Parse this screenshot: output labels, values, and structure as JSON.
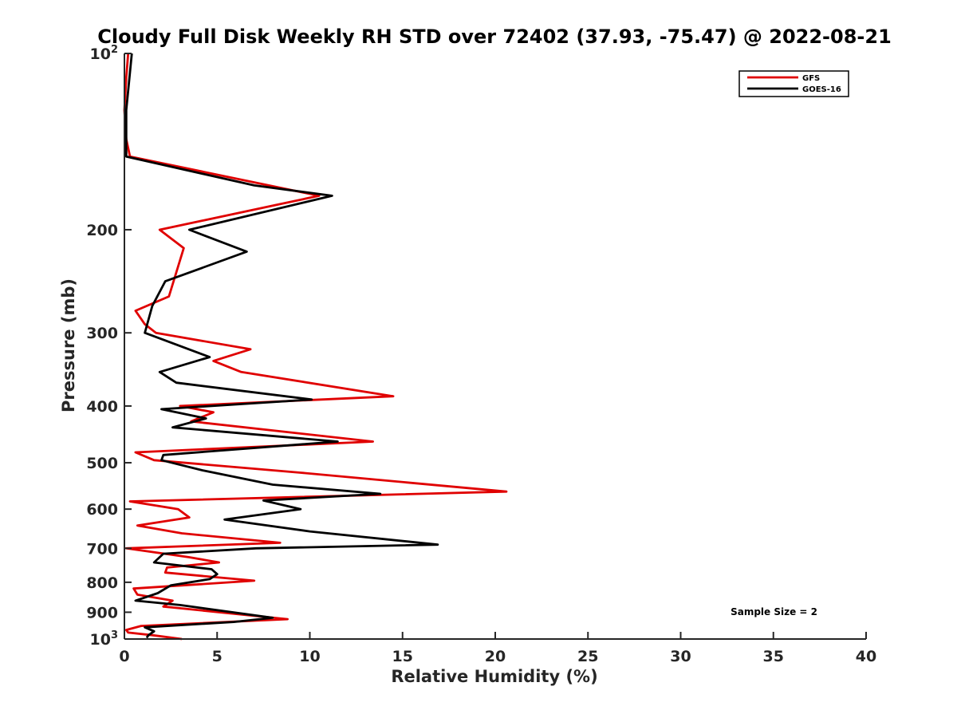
{
  "chart_data": {
    "type": "line",
    "title": "Cloudy Full Disk Weekly RH STD over 72402 (37.93, -75.47) @ 2022-08-21",
    "xlabel": "Relative Humidity (%)",
    "ylabel": "Pressure (mb)",
    "xlim": [
      0,
      40
    ],
    "ylim": [
      100,
      1000
    ],
    "y_scale": "log",
    "y_reversed": true,
    "grid": false,
    "legend_position": "top-right",
    "annotation": "Sample Size = 2",
    "x_ticks": [
      "0",
      "5",
      "10",
      "15",
      "20",
      "25",
      "30",
      "35",
      "40"
    ],
    "y_ticks": [
      {
        "value": 100,
        "base": "10",
        "exp": "2"
      },
      {
        "value": 200,
        "label": "200"
      },
      {
        "value": 300,
        "label": "300"
      },
      {
        "value": 400,
        "label": "400"
      },
      {
        "value": 500,
        "label": "500"
      },
      {
        "value": 600,
        "label": "600"
      },
      {
        "value": 700,
        "label": "700"
      },
      {
        "value": 800,
        "label": "800"
      },
      {
        "value": 900,
        "label": "900"
      },
      {
        "value": 1000,
        "base": "10",
        "exp": "3"
      }
    ],
    "series": [
      {
        "name": "GFS",
        "color": "#e00000",
        "points": [
          [
            0.2,
            100
          ],
          [
            0.1,
            110
          ],
          [
            0.0,
            125
          ],
          [
            0.1,
            140
          ],
          [
            0.3,
            150
          ],
          [
            10.5,
            175
          ],
          [
            1.9,
            200
          ],
          [
            3.2,
            215
          ],
          [
            2.4,
            260
          ],
          [
            0.6,
            275
          ],
          [
            1.1,
            290
          ],
          [
            1.7,
            300
          ],
          [
            6.8,
            320
          ],
          [
            4.8,
            335
          ],
          [
            6.3,
            350
          ],
          [
            14.5,
            385
          ],
          [
            3.0,
            400
          ],
          [
            4.8,
            410
          ],
          [
            3.6,
            425
          ],
          [
            13.4,
            460
          ],
          [
            0.6,
            480
          ],
          [
            1.6,
            495
          ],
          [
            9.5,
            520
          ],
          [
            20.6,
            560
          ],
          [
            0.3,
            582
          ],
          [
            2.9,
            600
          ],
          [
            3.5,
            620
          ],
          [
            0.7,
            640
          ],
          [
            3.1,
            660
          ],
          [
            8.4,
            685
          ],
          [
            0.1,
            700
          ],
          [
            3.5,
            725
          ],
          [
            5.1,
            740
          ],
          [
            2.3,
            755
          ],
          [
            2.2,
            770
          ],
          [
            7.0,
            795
          ],
          [
            0.5,
            820
          ],
          [
            0.7,
            840
          ],
          [
            2.6,
            860
          ],
          [
            2.1,
            880
          ],
          [
            8.8,
            925
          ],
          [
            0.9,
            950
          ],
          [
            0.1,
            965
          ],
          [
            0.2,
            975
          ],
          [
            1.5,
            985
          ],
          [
            3.1,
            1000
          ]
        ]
      },
      {
        "name": "GOES-16",
        "color": "#000000",
        "points": [
          [
            0.4,
            100
          ],
          [
            0.1,
            125
          ],
          [
            0.1,
            150
          ],
          [
            7.0,
            168
          ],
          [
            11.2,
            175
          ],
          [
            3.5,
            200
          ],
          [
            6.6,
            218
          ],
          [
            2.2,
            245
          ],
          [
            1.5,
            270
          ],
          [
            1.1,
            300
          ],
          [
            4.6,
            330
          ],
          [
            1.9,
            350
          ],
          [
            2.8,
            365
          ],
          [
            10.1,
            390
          ],
          [
            2.0,
            405
          ],
          [
            4.4,
            420
          ],
          [
            2.6,
            435
          ],
          [
            11.5,
            460
          ],
          [
            2.1,
            485
          ],
          [
            2.0,
            495
          ],
          [
            4.2,
            515
          ],
          [
            8.0,
            545
          ],
          [
            13.8,
            565
          ],
          [
            7.5,
            580
          ],
          [
            9.5,
            600
          ],
          [
            5.4,
            625
          ],
          [
            10.0,
            655
          ],
          [
            16.9,
            690
          ],
          [
            7.1,
            700
          ],
          [
            2.1,
            715
          ],
          [
            1.6,
            740
          ],
          [
            4.7,
            760
          ],
          [
            5.0,
            775
          ],
          [
            4.6,
            790
          ],
          [
            2.5,
            810
          ],
          [
            1.8,
            835
          ],
          [
            0.6,
            860
          ],
          [
            3.0,
            875
          ],
          [
            8.0,
            920
          ],
          [
            5.9,
            935
          ],
          [
            1.1,
            955
          ],
          [
            1.6,
            970
          ],
          [
            1.3,
            985
          ],
          [
            1.2,
            995
          ]
        ]
      }
    ]
  }
}
